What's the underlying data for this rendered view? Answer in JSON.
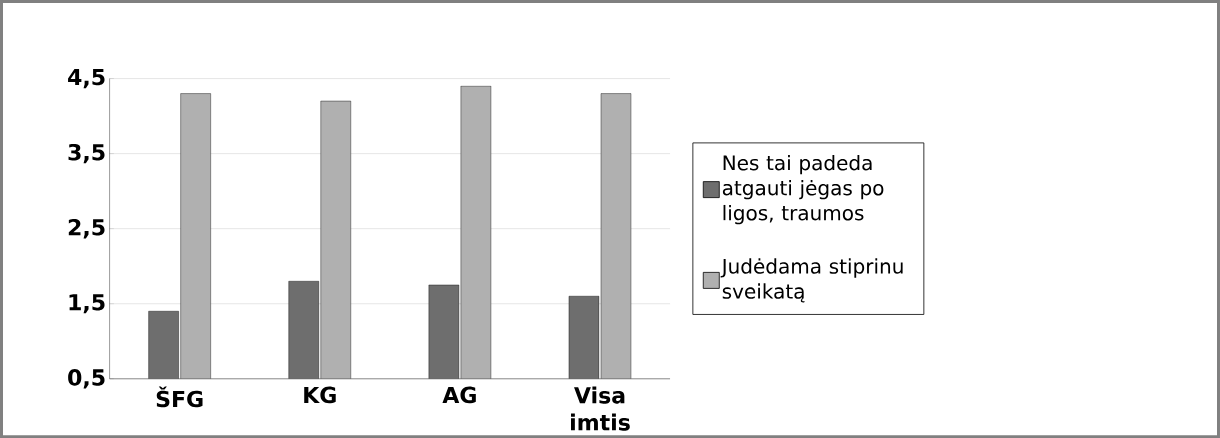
{
  "chart_data": {
    "type": "bar",
    "categories": [
      "ŠFG",
      "KG",
      "AG",
      "Visa imtis"
    ],
    "series": [
      {
        "name": "Nes tai padeda atgauti jėgas po ligos, traumos",
        "color": "#6e6e6e",
        "values": [
          1.4,
          1.8,
          1.75,
          1.6
        ]
      },
      {
        "name": "Judėdama stiprinu sveikatą",
        "color": "#b0b0b0",
        "values": [
          4.3,
          4.2,
          4.4,
          4.3
        ]
      }
    ],
    "ylim": [
      0.5,
      4.5
    ],
    "yticks": [
      {
        "value": 0.5,
        "label": "0,5"
      },
      {
        "value": 1.5,
        "label": "1,5"
      },
      {
        "value": 2.5,
        "label": "2,5"
      },
      {
        "value": 3.5,
        "label": "3,5"
      },
      {
        "value": 4.5,
        "label": "4,5"
      }
    ],
    "grid": "y",
    "legend": "right"
  }
}
